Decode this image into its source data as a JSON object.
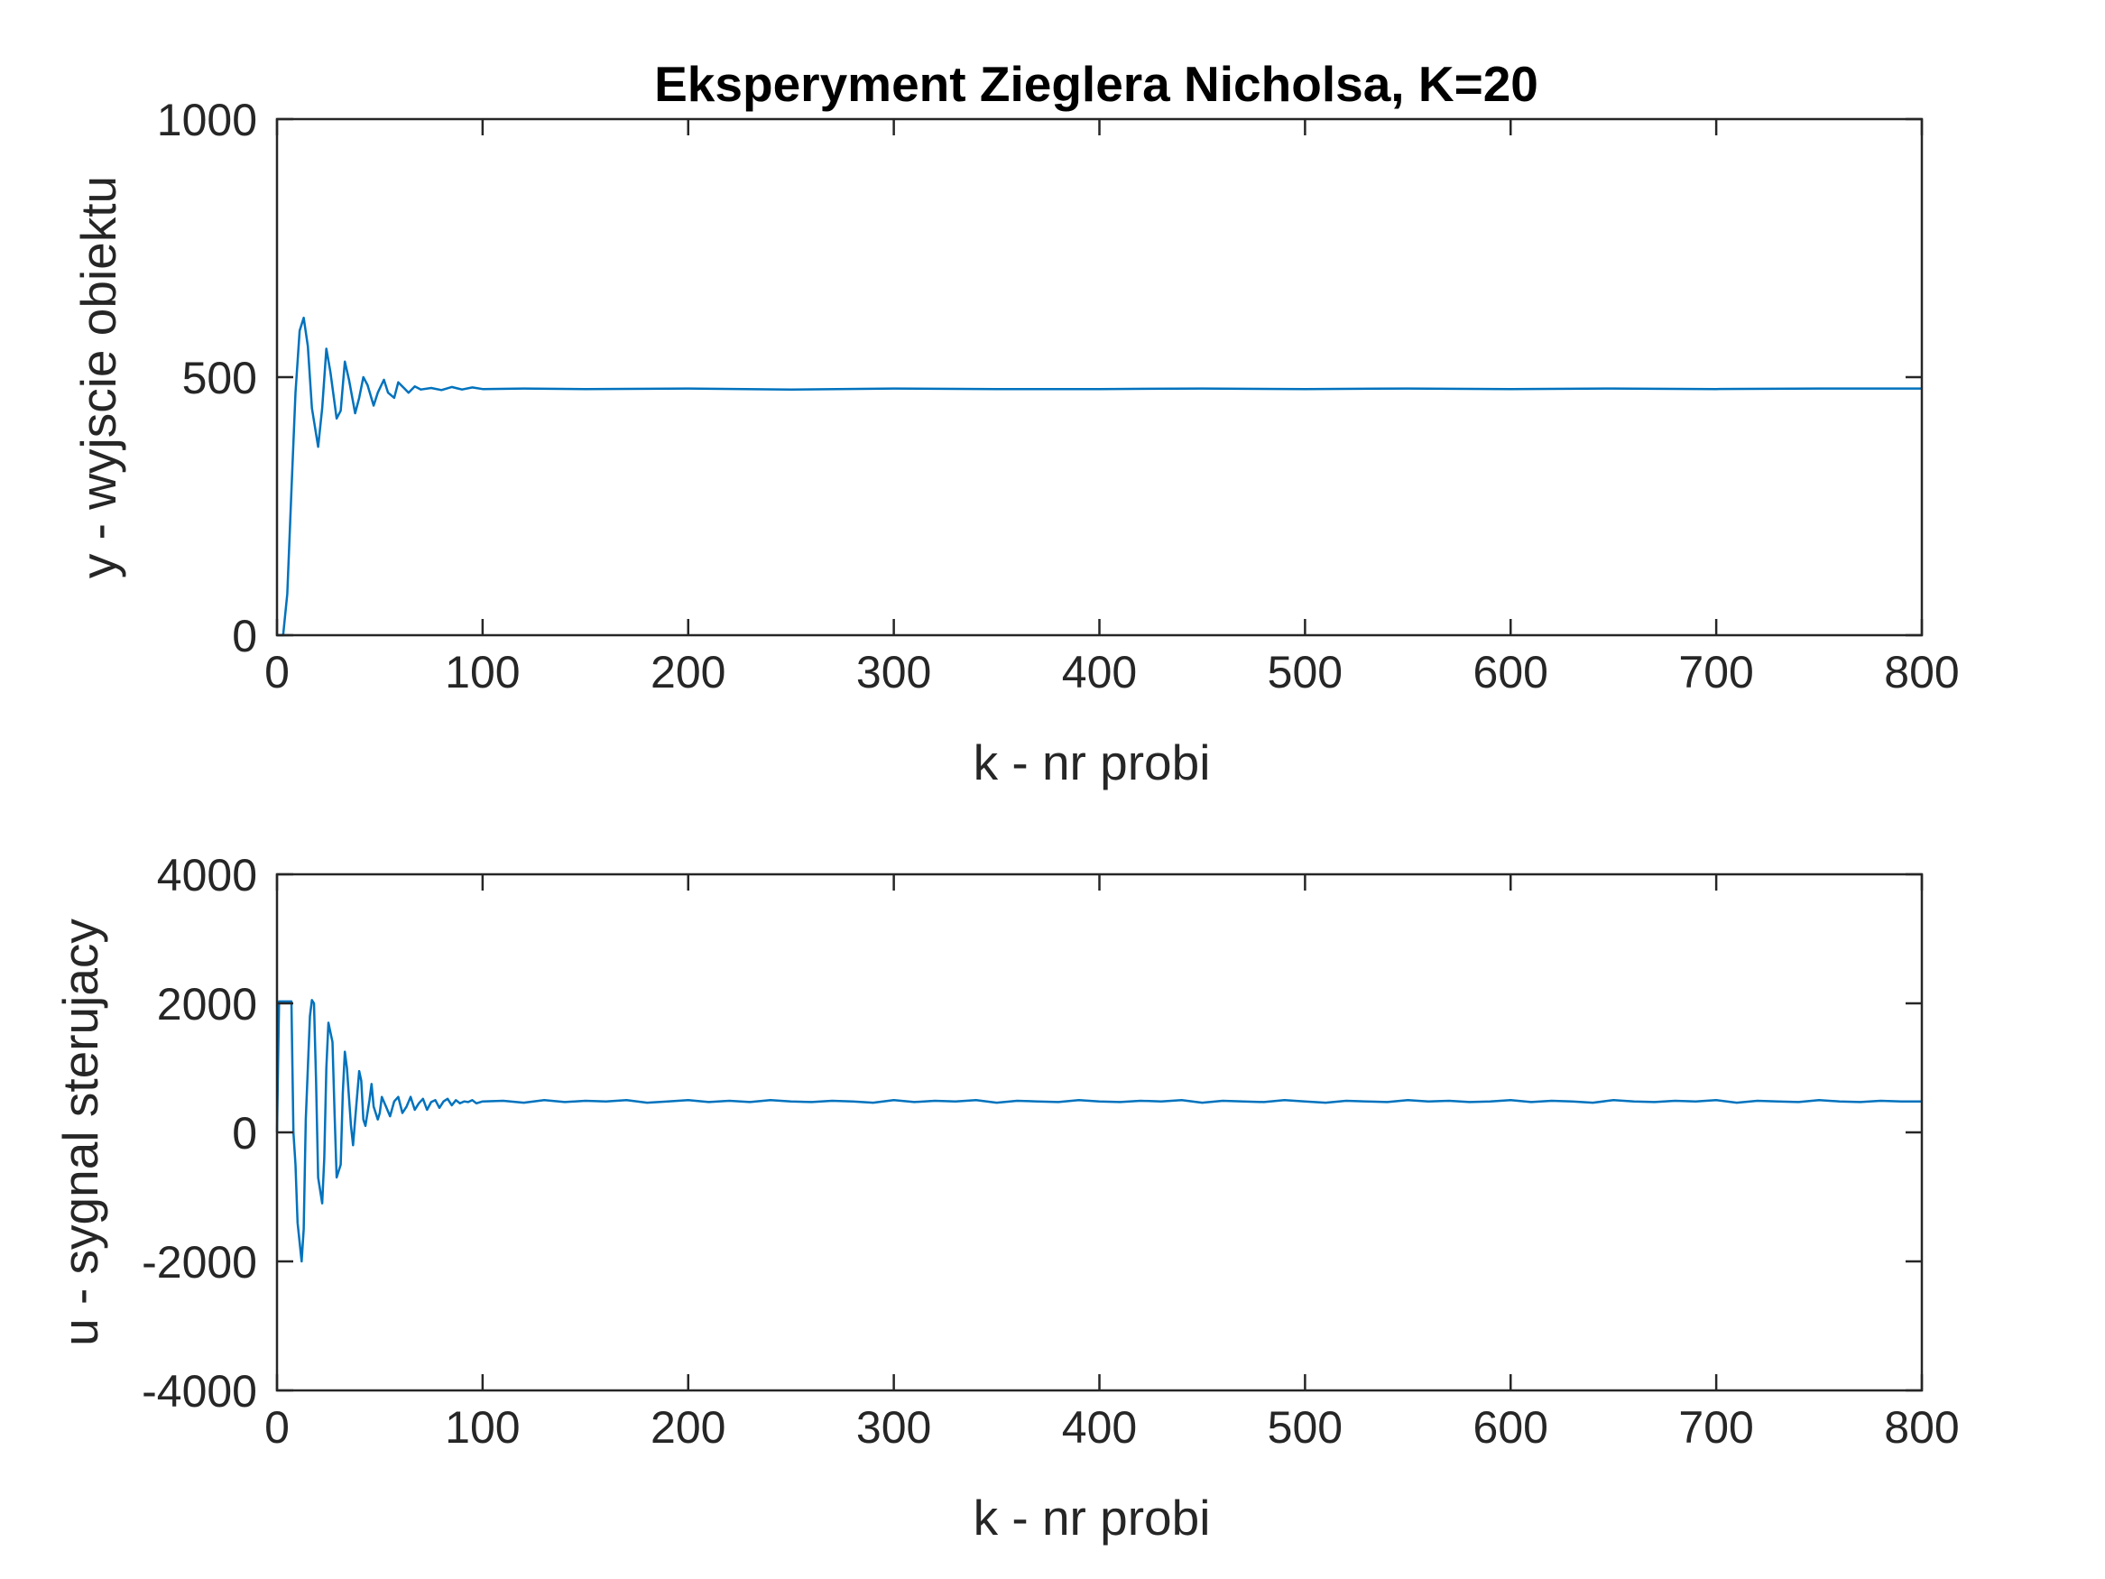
{
  "chart_data": [
    {
      "type": "line",
      "title": "Eksperyment Zieglera Nicholsa, K=20",
      "xlabel": "k - nr probi",
      "ylabel": "y - wyjscie obiektu",
      "xlim": [
        0,
        800
      ],
      "ylim": [
        0,
        1000
      ],
      "xticks": [
        "0",
        "100",
        "200",
        "300",
        "400",
        "500",
        "600",
        "700",
        "800"
      ],
      "yticks": [
        "0",
        "500",
        "1000"
      ],
      "grid": false,
      "color": "#0072bd",
      "series": [
        {
          "x": [
            0,
            3,
            5,
            7,
            9,
            11,
            13,
            15,
            17,
            20,
            22,
            24,
            26,
            29,
            31,
            33,
            35,
            38,
            40,
            42,
            44,
            47,
            49,
            52,
            54,
            57,
            59,
            62,
            64,
            67,
            70,
            75,
            80,
            85,
            90,
            95,
            100,
            120,
            150,
            200,
            250,
            300,
            350,
            400,
            450,
            500,
            550,
            600,
            650,
            700,
            750,
            800
          ],
          "values": [
            0,
            0,
            80,
            280,
            470,
            590,
            615,
            560,
            440,
            365,
            440,
            555,
            510,
            420,
            435,
            530,
            495,
            430,
            460,
            500,
            485,
            445,
            470,
            495,
            470,
            460,
            490,
            478,
            470,
            482,
            476,
            479,
            475,
            481,
            476,
            480,
            477,
            478,
            477,
            478,
            476,
            478,
            477,
            477,
            478,
            477,
            478,
            477,
            478,
            477,
            478,
            478
          ]
        }
      ]
    },
    {
      "type": "line",
      "title": "",
      "xlabel": "k - nr probi",
      "ylabel": "u - sygnal sterujacy",
      "xlim": [
        0,
        800
      ],
      "ylim": [
        -4000,
        4000
      ],
      "xticks": [
        "0",
        "100",
        "200",
        "300",
        "400",
        "500",
        "600",
        "700",
        "800"
      ],
      "yticks": [
        "-4000",
        "-2000",
        "0",
        "2000",
        "4000"
      ],
      "grid": false,
      "color": "#0072bd",
      "series": [
        {
          "x": [
            0,
            1,
            2,
            3,
            4,
            5,
            6,
            7,
            8,
            9,
            10,
            12,
            13,
            14,
            16,
            17,
            18,
            19,
            20,
            22,
            23,
            24,
            25,
            27,
            28,
            29,
            31,
            32,
            33,
            34,
            36,
            37,
            38,
            40,
            41,
            42,
            43,
            45,
            46,
            47,
            49,
            50,
            51,
            53,
            55,
            57,
            59,
            61,
            63,
            65,
            67,
            69,
            71,
            73,
            75,
            77,
            79,
            81,
            83,
            85,
            87,
            89,
            91,
            93,
            95,
            97,
            100,
            110,
            120,
            130,
            140,
            150,
            160,
            170,
            180,
            190,
            200,
            210,
            220,
            230,
            240,
            250,
            260,
            270,
            280,
            290,
            300,
            310,
            320,
            330,
            340,
            350,
            360,
            370,
            380,
            390,
            400,
            410,
            420,
            430,
            440,
            450,
            460,
            470,
            480,
            490,
            500,
            510,
            520,
            530,
            540,
            550,
            560,
            570,
            580,
            590,
            600,
            610,
            620,
            630,
            640,
            650,
            660,
            670,
            680,
            690,
            700,
            710,
            720,
            730,
            740,
            750,
            760,
            770,
            780,
            790,
            800
          ],
          "values": [
            0,
            2030,
            2030,
            2030,
            2030,
            2030,
            2030,
            2030,
            0,
            -500,
            -1400,
            -2000,
            -1500,
            200,
            1800,
            2050,
            2000,
            800,
            -700,
            -1100,
            -400,
            1000,
            1700,
            1400,
            300,
            -700,
            -500,
            600,
            1250,
            1000,
            100,
            -200,
            200,
            950,
            800,
            200,
            100,
            500,
            750,
            400,
            200,
            300,
            550,
            400,
            250,
            480,
            550,
            300,
            400,
            550,
            350,
            450,
            520,
            350,
            470,
            500,
            380,
            480,
            520,
            420,
            500,
            450,
            480,
            470,
            500,
            450,
            480,
            490,
            460,
            500,
            470,
            490,
            480,
            500,
            460,
            480,
            500,
            470,
            490,
            470,
            500,
            480,
            470,
            490,
            480,
            460,
            500,
            470,
            490,
            480,
            500,
            460,
            490,
            480,
            470,
            500,
            480,
            470,
            490,
            480,
            500,
            460,
            490,
            480,
            470,
            500,
            480,
            460,
            490,
            480,
            470,
            500,
            480,
            490,
            470,
            480,
            500,
            470,
            490,
            480,
            460,
            500,
            480,
            470,
            490,
            480,
            500,
            460,
            490,
            480,
            470,
            500,
            480,
            470,
            490,
            480,
            480
          ]
        }
      ]
    }
  ]
}
